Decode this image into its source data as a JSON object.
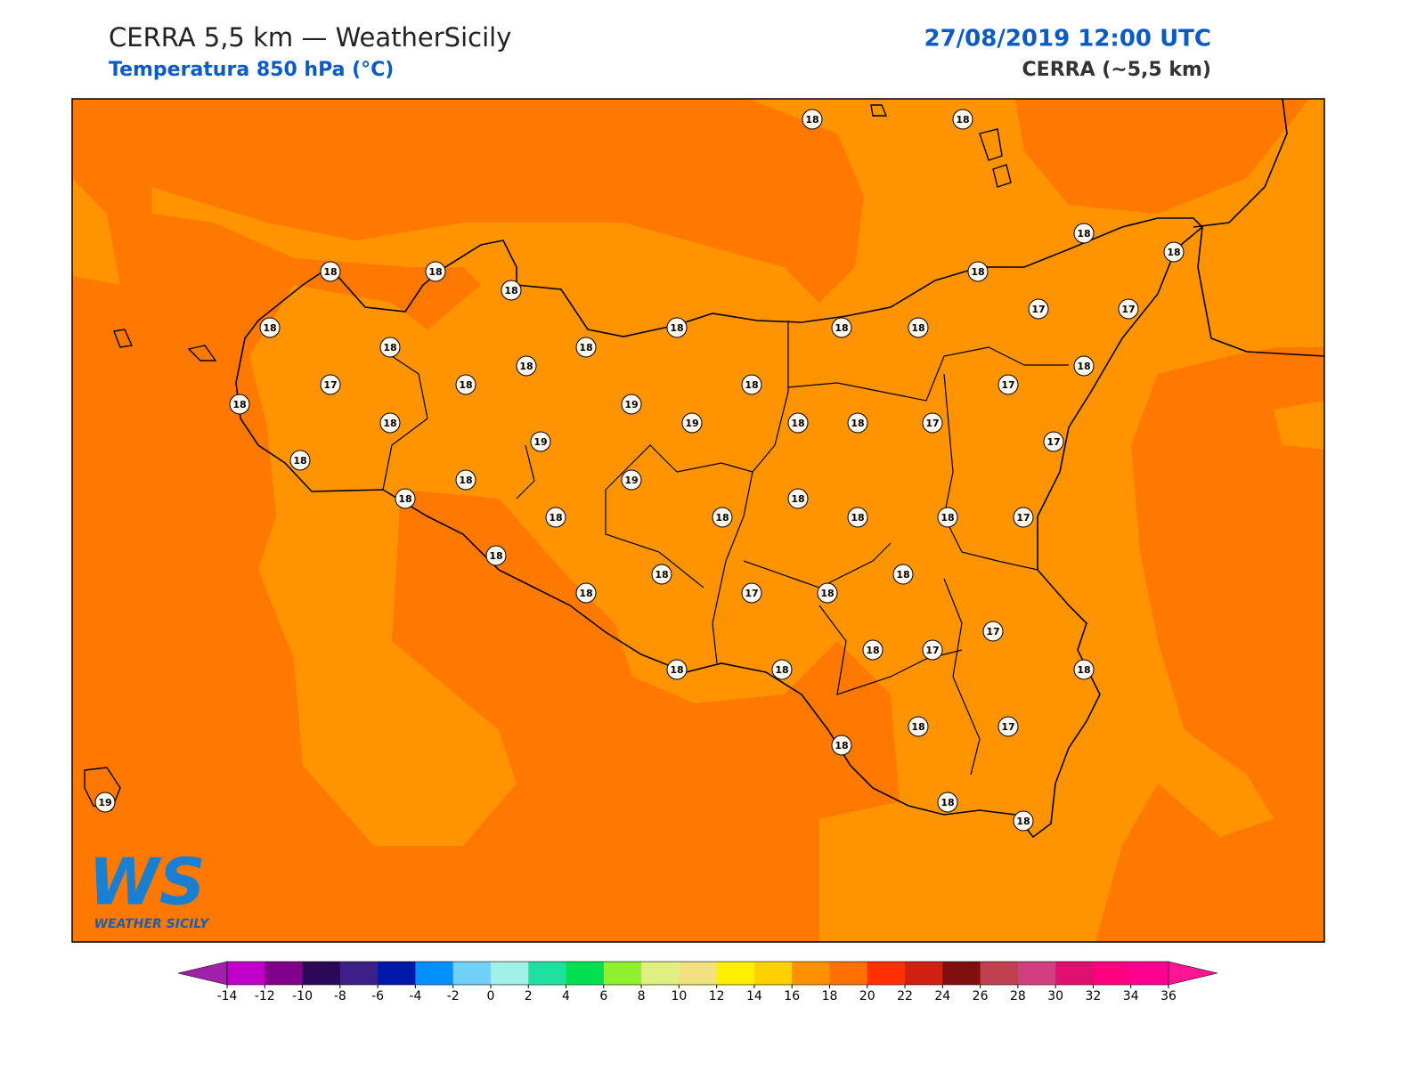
{
  "header": {
    "title": "CERRA 5,5 km — WeatherSicily",
    "subtitle": "Temperatura 850 hPa (°C)",
    "date": "27/08/2019 12:00 UTC",
    "model": "CERRA (~5,5 km)"
  },
  "stations": {
    "values": [
      18,
      18,
      18,
      18,
      18,
      18,
      18,
      18,
      17,
      17,
      18,
      18,
      18,
      18,
      18,
      18,
      18,
      18,
      17,
      18,
      18,
      17,
      18,
      19,
      18,
      19,
      18,
      18,
      17,
      19,
      17,
      18,
      18,
      19,
      18,
      18,
      18,
      18,
      18,
      18,
      17,
      18,
      18,
      18,
      18,
      17,
      18,
      17,
      18,
      17,
      18,
      18,
      18,
      18,
      18,
      17,
      18,
      18,
      19
    ]
  },
  "colorbar": {
    "ticks": [
      -14,
      -12,
      -10,
      -8,
      -6,
      -4,
      -2,
      0,
      2,
      4,
      6,
      8,
      10,
      12,
      14,
      16,
      18,
      20,
      22,
      24,
      26,
      28,
      30,
      32,
      34,
      36
    ],
    "under": "#a020a8",
    "over": "#ff1493",
    "colors": [
      "#c000c8",
      "#80008c",
      "#2c0858",
      "#3c2088",
      "#0018a8",
      "#0090ff",
      "#70d0f8",
      "#a0f0e8",
      "#20e0a0",
      "#00e050",
      "#90f030",
      "#e0f080",
      "#f0e080",
      "#fff000",
      "#ffd000",
      "#ff9000",
      "#ff7000",
      "#ff3000",
      "#d02010",
      "#801010",
      "#c04050",
      "#d04080",
      "#e01070",
      "#ff0080",
      "#ff0090"
    ]
  },
  "logo": {
    "mark": "WS",
    "name": "WEATHER SICILY"
  }
}
